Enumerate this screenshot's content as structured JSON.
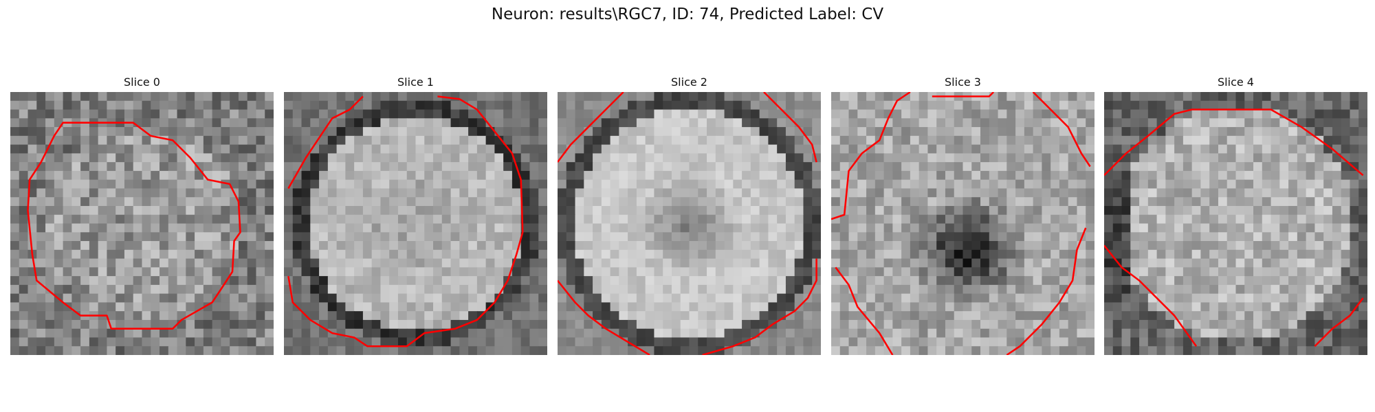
{
  "figure": {
    "title": "Neuron: results\\RGC7, ID: 74, Predicted Label: CV"
  },
  "contour_color": "#ff0000",
  "slices": [
    {
      "label": "Slice 0",
      "kind": 0,
      "seed": 11
    },
    {
      "label": "Slice 1",
      "kind": 1,
      "seed": 23
    },
    {
      "label": "Slice 2",
      "kind": 2,
      "seed": 37
    },
    {
      "label": "Slice 3",
      "kind": 3,
      "seed": 41
    },
    {
      "label": "Slice 4",
      "kind": 4,
      "seed": 59
    }
  ]
}
